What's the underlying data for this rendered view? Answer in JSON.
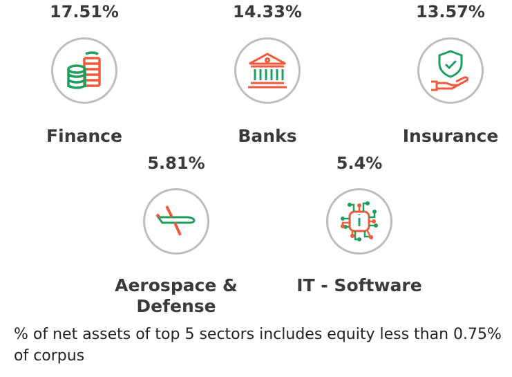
{
  "sectors": [
    {
      "pct": "17.51%",
      "label": "Finance",
      "icon": "coins-icon"
    },
    {
      "pct": "14.33%",
      "label": "Banks",
      "icon": "bank-icon"
    },
    {
      "pct": "13.57%",
      "label": "Insurance",
      "icon": "shield-hand-icon"
    },
    {
      "pct": "5.81%",
      "label": "Aerospace & Defense",
      "icon": "airplane-icon"
    },
    {
      "pct": "5.4%",
      "label": "IT - Software",
      "icon": "circuit-chip-icon"
    }
  ],
  "footnote": "% of net assets of top 5 sectors includes equity less than 0.75% of corpus",
  "colors": {
    "green": "#1e9e5e",
    "orange": "#f05a3a",
    "ring": "#bdbdbd"
  }
}
